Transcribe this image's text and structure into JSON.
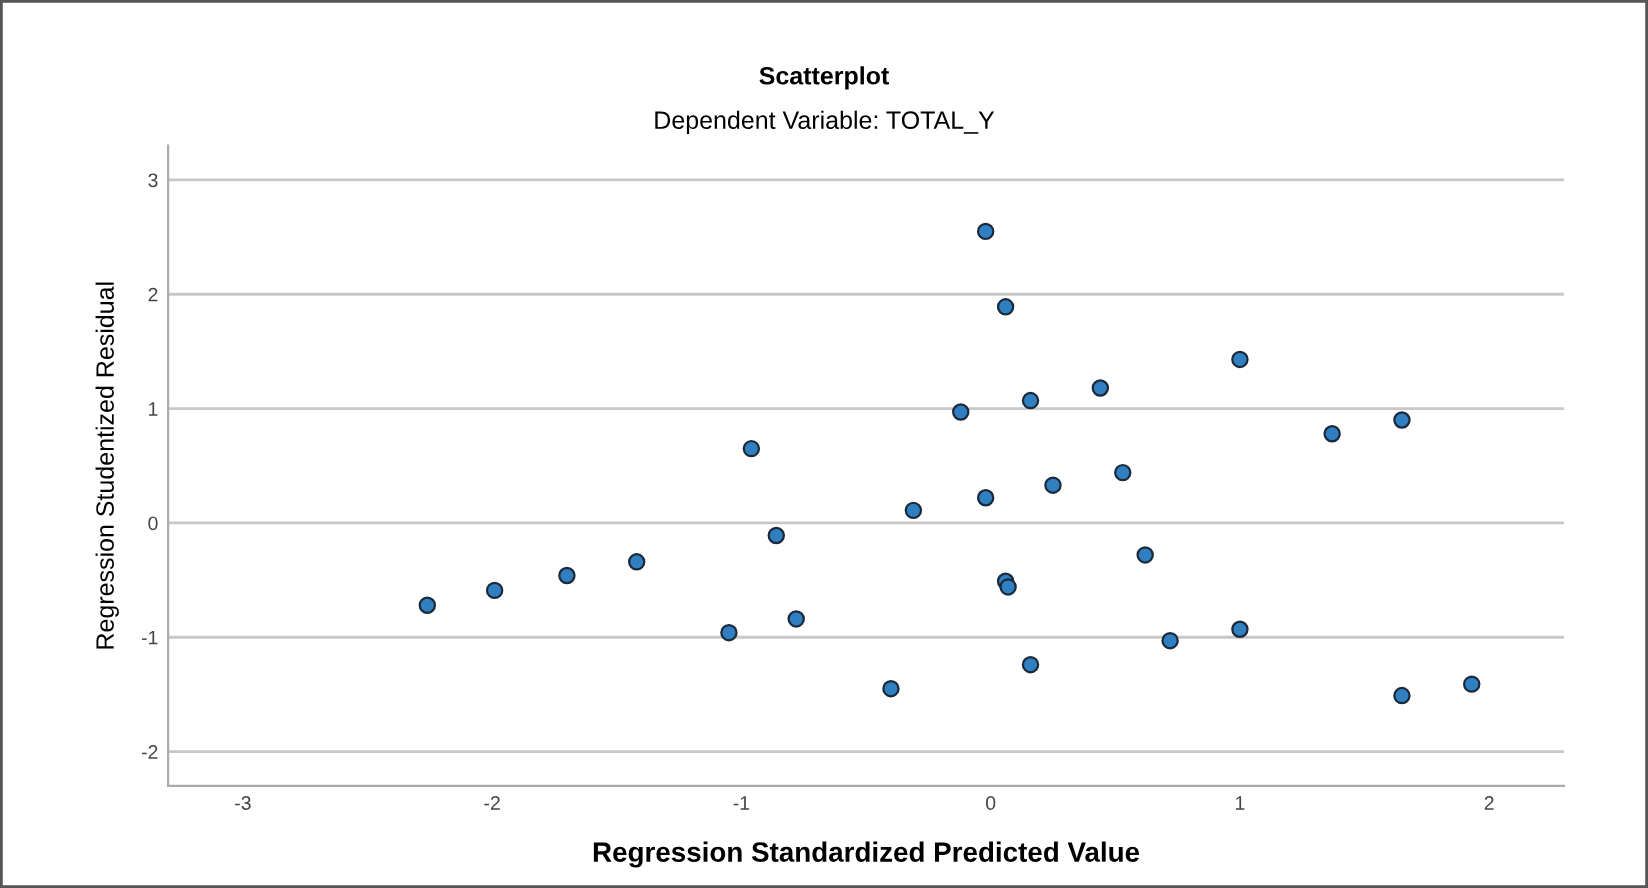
{
  "chart_data": {
    "type": "scatter",
    "title": "Scatterplot",
    "subtitle": "Dependent Variable: TOTAL_Y",
    "xlabel": "Regression Standardized Predicted Value",
    "ylabel": "Regression Studentized Residual",
    "x": [
      -2.26,
      -1.99,
      -1.7,
      -1.42,
      -0.96,
      -0.86,
      -1.05,
      -0.78,
      -0.02,
      0.06,
      1.0,
      0.44,
      0.16,
      -0.12,
      1.37,
      1.65,
      0.53,
      0.25,
      -0.02,
      -0.31,
      0.62,
      0.06,
      0.07,
      1.0,
      0.72,
      0.16,
      -0.4,
      1.65,
      1.93
    ],
    "series": [
      {
        "color": "#2f7fc1",
        "values": [
          -0.72,
          -0.59,
          -0.46,
          -0.34,
          0.65,
          -0.11,
          -0.96,
          -0.84,
          2.55,
          1.89,
          1.43,
          1.18,
          1.07,
          0.97,
          0.78,
          0.9,
          0.44,
          0.33,
          0.22,
          0.11,
          -0.28,
          -0.51,
          -0.56,
          -0.93,
          -1.03,
          -1.24,
          -1.45,
          -1.51,
          -1.41
        ]
      }
    ],
    "xlim": [
      -3.3,
      2.3
    ],
    "ylim": [
      -2.3,
      3.3
    ],
    "xticks": [
      {
        "value": -3,
        "label": "-3"
      },
      {
        "value": -2,
        "label": "-2"
      },
      {
        "value": -1,
        "label": "-1"
      },
      0,
      1,
      2
    ],
    "yticks": [
      {
        "value": -2,
        "label": "-2"
      },
      {
        "value": -1,
        "label": "-1"
      },
      0,
      1,
      2,
      3
    ],
    "grid": "y",
    "marker": "circle"
  }
}
